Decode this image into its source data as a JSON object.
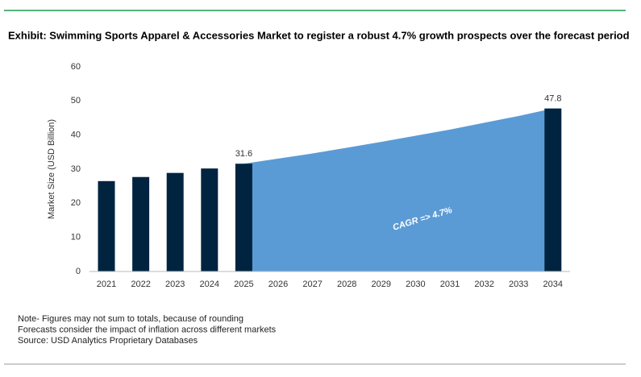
{
  "chart_data": {
    "type": "bar-area",
    "title": "Exhibit: Swimming Sports Apparel & Accessories Market to register a robust 4.7% growth prospects over the forecast period",
    "y_label": "Market Size (USD Billion)",
    "categories": [
      "2021",
      "2022",
      "2023",
      "2024",
      "2025",
      "2026",
      "2027",
      "2028",
      "2029",
      "2030",
      "2031",
      "2032",
      "2033",
      "2034"
    ],
    "series": [
      {
        "name": "Market Size",
        "type": "bar",
        "color": "#002440",
        "values": [
          26.5,
          27.7,
          28.9,
          30.2,
          31.6,
          null,
          null,
          null,
          null,
          null,
          null,
          null,
          null,
          47.8
        ],
        "value_labels": [
          null,
          null,
          null,
          null,
          "31.6",
          null,
          null,
          null,
          null,
          null,
          null,
          null,
          null,
          "47.8"
        ]
      },
      {
        "name": "Forecast",
        "type": "area",
        "color": "#5b9bd5",
        "values": [
          null,
          null,
          null,
          null,
          31.6,
          33.1,
          34.6,
          36.3,
          38.0,
          39.8,
          41.6,
          43.6,
          45.6,
          47.8
        ]
      }
    ],
    "annotation": "CAGR => 4.7%",
    "ylim": [
      0,
      60
    ],
    "yticks": [
      0,
      10,
      20,
      30,
      40,
      50,
      60
    ],
    "notes": [
      "Note- Figures may not sum to totals, because of rounding",
      "Forecasts consider the impact of inflation across different markets",
      "Source: USD Analytics Proprietary Databases"
    ]
  }
}
